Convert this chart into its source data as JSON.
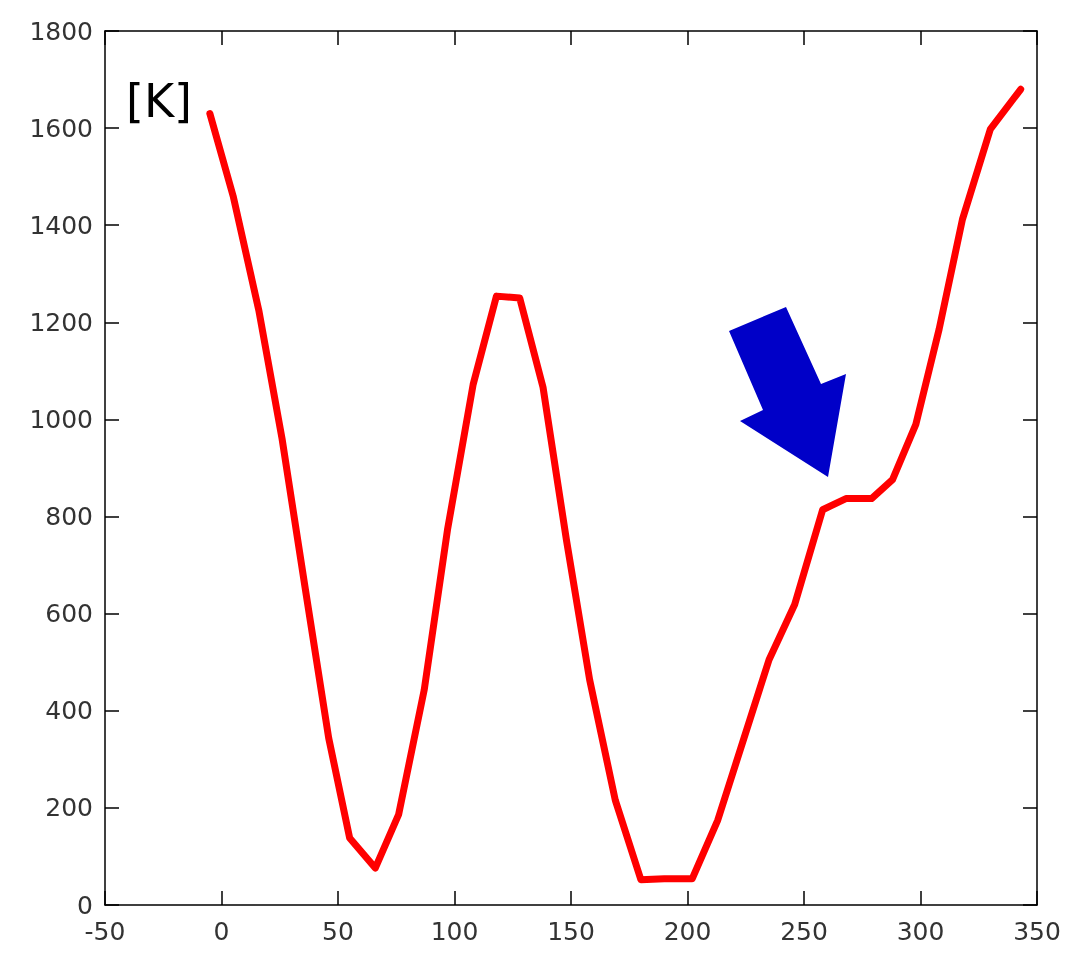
{
  "chart_data": {
    "type": "line",
    "ylabel": "[K]",
    "x": [
      -5,
      5,
      16,
      26,
      36,
      46,
      55,
      66,
      76,
      87,
      97,
      108,
      118,
      128,
      138,
      148,
      158,
      169,
      180,
      190,
      202,
      213,
      224,
      235,
      246,
      258,
      268,
      279,
      288,
      298,
      308,
      318,
      330,
      343
    ],
    "series": [
      {
        "color": "#ff0000",
        "values": [
          1630,
          1460,
          1225,
          960,
          650,
          344,
          138,
          76,
          186,
          443,
          773,
          1072,
          1254,
          1250,
          1066,
          753,
          464,
          216,
          52,
          54,
          54,
          175,
          340,
          505,
          619,
          814,
          837,
          837,
          876,
          990,
          1186,
          1412,
          1598,
          1680
        ]
      }
    ],
    "xlim": [
      -50,
      350
    ],
    "xticks": [
      -50,
      0,
      50,
      100,
      150,
      200,
      250,
      300,
      350
    ],
    "ylim": [
      0,
      1800
    ],
    "yticks": [
      0,
      200,
      400,
      600,
      800,
      1000,
      1200,
      1400,
      1600,
      1800
    ],
    "grid": false,
    "marker": "none",
    "line_style": "solid"
  }
}
